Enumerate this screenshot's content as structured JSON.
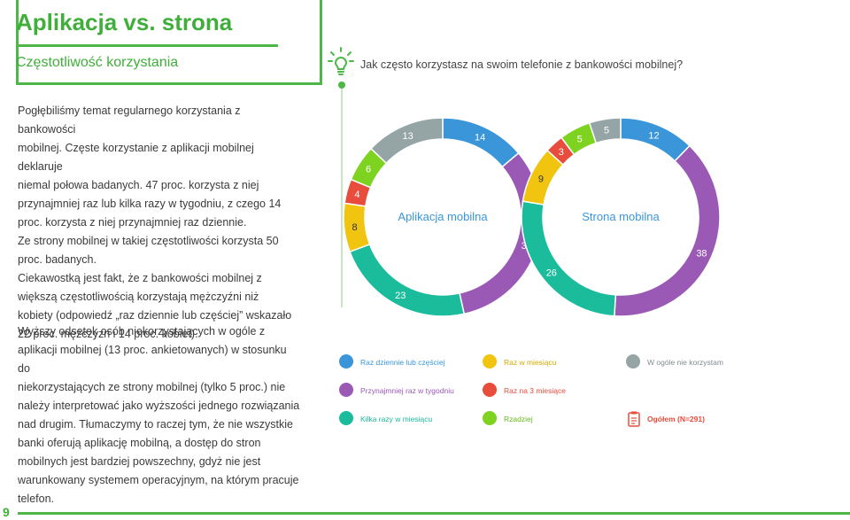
{
  "header": {
    "title": "Aplikacja vs. strona",
    "subtitle": "Częstotliwość korzystania"
  },
  "question": "Jak często korzystasz na swoim telefonie z bankowości mobilnej?",
  "paragraph1_lines": [
    "Pogłębiliśmy temat regularnego korzystania z bankowości",
    "mobilnej. Częste korzystanie z aplikacji mobilnej deklaruje",
    "niemal połowa badanych. 47 proc. korzysta z niej",
    "przynajmniej raz lub kilka razy w tygodniu, z czego 14",
    "proc. korzysta z niej przynajmniej raz dziennie.",
    "Ze strony mobilnej w takiej częstotliwości korzysta 50",
    "proc. badanych.",
    "Ciekawostką jest fakt, że z bankowości mobilnej z",
    "większą częstotliwością korzystają mężczyźni niż",
    "kobiety (odpowiedź „raz dziennie lub częściej” wskazało",
    "22 proc. mężczyzn i 14 proc. kobiet)."
  ],
  "paragraph2_lines": [
    "Wyższy odsetek osób niekorzystających w ogóle z",
    "aplikacji mobilnej (13 proc. ankietowanych) w stosunku do",
    "niekorzystających ze strony mobilnej (tylko 5 proc.) nie",
    "należy interpretować jako wyższości jednego rozwiązania",
    "nad drugim. Tłumaczymy to raczej tym, że nie wszystkie",
    "banki oferują aplikację mobilną, a dostęp do stron",
    "mobilnych jest bardziej powszechny, gdyż nie jest",
    "warunkowany systemem operacyjnym, na którym pracuje",
    "telefon."
  ],
  "colors": {
    "green": "#4db848",
    "blue": "#3a96d9",
    "purple": "#9b59b6",
    "teal": "#1abc9c",
    "yellow": "#f1c40f",
    "red": "#e74c3c",
    "lime": "#7ed321",
    "gray": "#95a5a6"
  },
  "legend": [
    {
      "label": "Raz dziennie lub częściej",
      "color": "#3a96d9"
    },
    {
      "label": "Raz w miesiącu",
      "color": "#f1c40f"
    },
    {
      "label": "W ogóle nie korzystam",
      "color": "#95a5a6"
    },
    {
      "label": "Przynajmniej raz w tygodniu",
      "color": "#9b59b6"
    },
    {
      "label": "Raz na 3 miesiące",
      "color": "#e74c3c"
    },
    {
      "label": "Kilka razy w miesiącu",
      "color": "#1abc9c"
    },
    {
      "label": "Rzadziej",
      "color": "#7ed321"
    }
  ],
  "legend_total": "Ogółem (N=291)",
  "page_number": "9",
  "chart_data": [
    {
      "type": "pie",
      "title": "Aplikacja mobilna",
      "categories": [
        "Raz dziennie lub częściej",
        "Przynajmniej raz w tygodniu",
        "Kilka razy w miesiącu",
        "Raz w miesiącu",
        "Raz na 3 miesiące",
        "Rzadziej",
        "W ogóle nie korzystam"
      ],
      "values": [
        14,
        33,
        23,
        8,
        4,
        6,
        13
      ],
      "colors": [
        "#3a96d9",
        "#9b59b6",
        "#1abc9c",
        "#f1c40f",
        "#e74c3c",
        "#7ed321",
        "#95a5a6"
      ]
    },
    {
      "type": "pie",
      "title": "Strona mobilna",
      "categories": [
        "Raz dziennie lub częściej",
        "Przynajmniej raz w tygodniu",
        "Kilka razy w miesiącu",
        "Raz w miesiącu",
        "Raz na 3 miesiące",
        "Rzadziej",
        "W ogóle nie korzystam"
      ],
      "values": [
        12,
        38,
        26,
        9,
        3,
        5,
        5
      ],
      "colors": [
        "#3a96d9",
        "#9b59b6",
        "#1abc9c",
        "#f1c40f",
        "#e74c3c",
        "#7ed321",
        "#95a5a6"
      ]
    }
  ]
}
